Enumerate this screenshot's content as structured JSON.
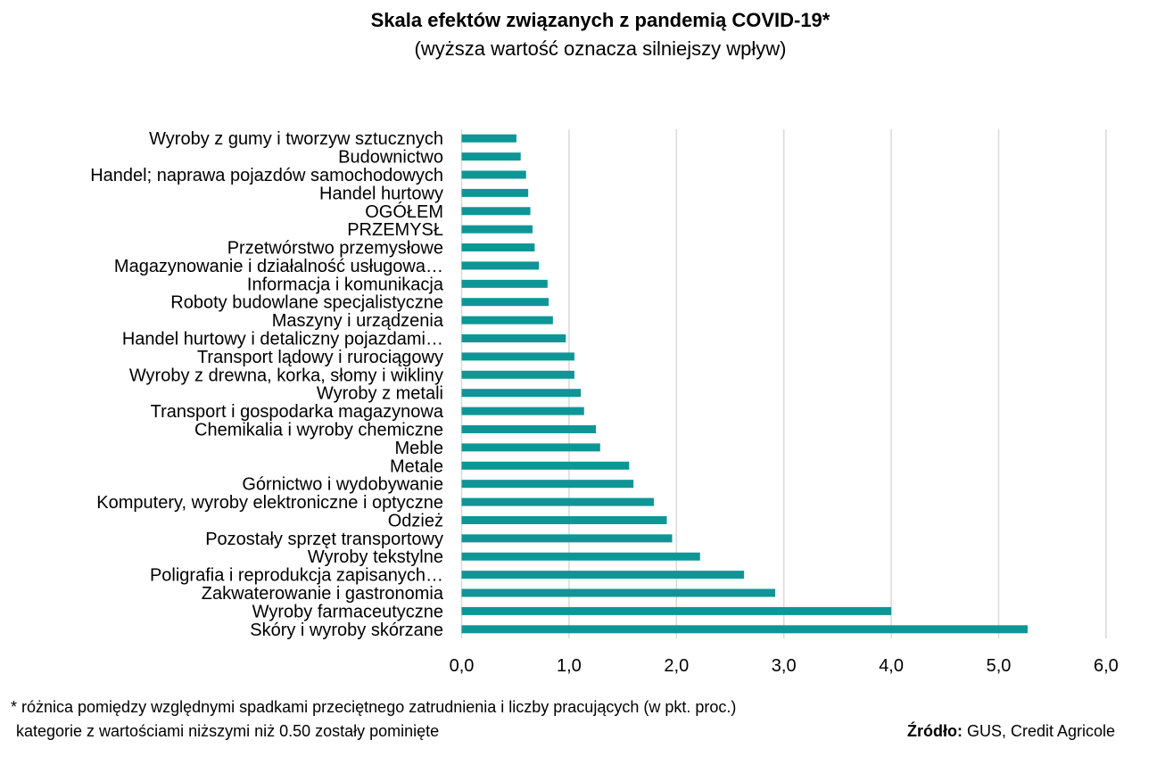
{
  "chart_data": {
    "type": "bar",
    "orientation": "horizontal",
    "title": "Skala efektów związanych z pandemią COVID-19*",
    "subtitle": "(wyższa wartość oznacza silniejszy wpływ)",
    "categories": [
      "Wyroby z gumy i tworzyw sztucznych",
      "Budownictwo",
      "Handel; naprawa pojazdów samochodowych",
      "Handel hurtowy",
      "OGÓŁEM",
      "PRZEMYSŁ",
      "Przetwórstwo przemysłowe",
      "Magazynowanie i działalność usługowa…",
      "Informacja i komunikacja",
      "Roboty budowlane specjalistyczne",
      "Maszyny i urządzenia",
      "Handel hurtowy i detaliczny pojazdami…",
      "Transport lądowy i rurociągowy",
      "Wyroby z drewna, korka, słomy i wikliny",
      "Wyroby z metali",
      "Transport i gospodarka magazynowa",
      "Chemikalia i wyroby chemiczne",
      "Meble",
      "Metale",
      "Górnictwo i wydobywanie",
      "Komputery, wyroby elektroniczne i optyczne",
      "Odzież",
      "Pozostały sprzęt transportowy",
      "Wyroby tekstylne",
      "Poligrafia i reprodukcja zapisanych…",
      "Zakwaterowanie i gastronomia",
      "Wyroby farmaceutyczne",
      "Skóry i wyroby skórzane"
    ],
    "values": [
      0.51,
      0.55,
      0.6,
      0.62,
      0.64,
      0.66,
      0.68,
      0.72,
      0.8,
      0.81,
      0.85,
      0.97,
      1.05,
      1.05,
      1.11,
      1.14,
      1.25,
      1.29,
      1.56,
      1.6,
      1.79,
      1.91,
      1.96,
      2.22,
      2.63,
      2.92,
      4.0,
      5.27
    ],
    "xlim": [
      0,
      6
    ],
    "xticks": [
      "0,0",
      "1,0",
      "2,0",
      "3,0",
      "4,0",
      "5,0",
      "6,0"
    ],
    "xlabel": "",
    "ylabel": "",
    "grid": "vertical",
    "legend": "none",
    "bar_color": "#0e9696",
    "grid_color": "#d9d9d9"
  },
  "footnote": "* różnica pomiędzy względnymi spadkami przeciętnego zatrudnienia i liczby pracujących (w pkt. proc.)",
  "footnote2": "kategorie z wartościami niższymi niż 0.50 zostały pominięte",
  "source_label": "Źródło:",
  "source_text": " GUS, Credit Agricole"
}
